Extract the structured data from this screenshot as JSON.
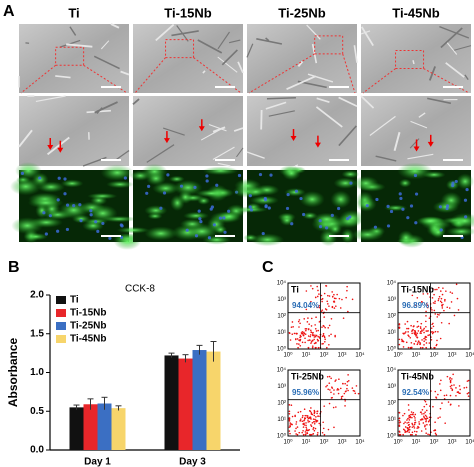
{
  "panel_a": {
    "label": "A",
    "columns": [
      "Ti",
      "Ti-15Nb",
      "Ti-25Nb",
      "Ti-45Nb"
    ]
  },
  "chart_data": {
    "type": "bar",
    "panel_label": "B",
    "title": "CCK-8",
    "y_label": "Absorbance",
    "categories": [
      "Day 1",
      "Day 3"
    ],
    "series": [
      {
        "name": "Ti",
        "color": "#111111",
        "values": [
          0.55,
          1.22
        ],
        "errors": [
          0.03,
          0.03
        ]
      },
      {
        "name": "Ti-15Nb",
        "color": "#e8262a",
        "values": [
          0.59,
          1.18
        ],
        "errors": [
          0.07,
          0.05
        ]
      },
      {
        "name": "Ti-25Nb",
        "color": "#3b6fc3",
        "values": [
          0.6,
          1.29
        ],
        "errors": [
          0.08,
          0.06
        ]
      },
      {
        "name": "Ti-45Nb",
        "color": "#f7d56b",
        "values": [
          0.54,
          1.27
        ],
        "errors": [
          0.03,
          0.13
        ]
      }
    ],
    "ylim": [
      0,
      2.0
    ],
    "yticks": [
      {
        "value": 0,
        "label": "0.0"
      },
      0.5,
      {
        "value": 1.0,
        "label": "1.0"
      },
      1.5,
      {
        "value": 2.0,
        "label": "2.0"
      }
    ]
  },
  "panel_c": {
    "label": "C",
    "axis_ticks": [
      "10⁰",
      "10¹",
      "10²",
      "10³",
      "10⁴"
    ],
    "plots": [
      {
        "name": "Ti",
        "percent": "94.04%"
      },
      {
        "name": "Ti-15Nb",
        "percent": "96.89%"
      },
      {
        "name": "Ti-25Nb",
        "percent": "95.96%"
      },
      {
        "name": "Ti-45Nb",
        "percent": "92.54%"
      }
    ]
  }
}
